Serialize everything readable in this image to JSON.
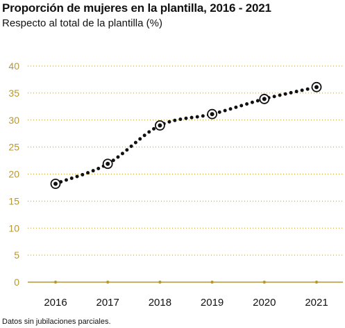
{
  "chart_data": {
    "type": "line",
    "title": "Proporción de mujeres en la plantilla, 2016 - 2021",
    "subtitle": "Respecto al total de la plantilla (%)",
    "note": "Datos sin jubilaciones parciales.",
    "xlabel": "",
    "ylabel": "",
    "categories": [
      "2016",
      "2017",
      "2018",
      "2019",
      "2020",
      "2021"
    ],
    "series": [
      {
        "values": [
          18.2,
          21.9,
          29.0,
          31.1,
          33.9,
          36.1
        ]
      }
    ],
    "ylim": [
      0,
      40
    ],
    "yticks": [
      0,
      5,
      10,
      15,
      20,
      25,
      30,
      35,
      40
    ],
    "grid": true,
    "grid_style": "dotted",
    "line_style": "dotted",
    "legend": "none",
    "colors": {
      "axis": "#b8972e",
      "grid": "#b8972e",
      "tick_y": "#b8972e",
      "series": "#111111"
    }
  }
}
